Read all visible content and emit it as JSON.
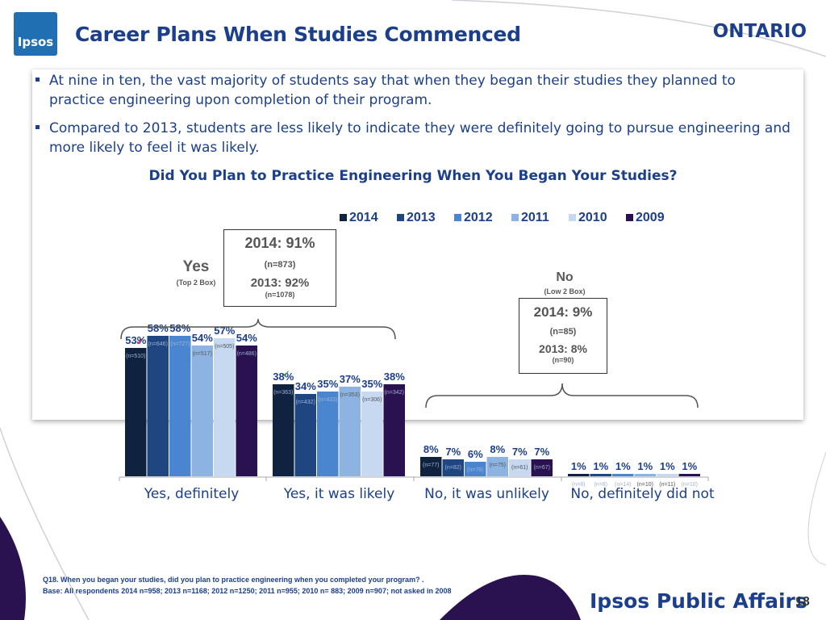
{
  "header": {
    "logo_text": "Ipsos",
    "title": "Career Plans When Studies Commenced",
    "region": "ONTARIO"
  },
  "bullets": [
    "At nine in ten, the vast majority of students say that when they began their studies they planned to practice engineering upon completion of their program.",
    "Compared to 2013, students are less likely to indicate they were definitely going to pursue engineering and more likely to feel it was likely."
  ],
  "chart_data": {
    "type": "bar",
    "title": "Did You Plan to Practice Engineering When You Began Your Studies?",
    "legend_position": "top",
    "ylim": [
      0,
      100
    ],
    "categories": [
      "Yes, definitely",
      "Yes, it was likely",
      "No, it was unlikely",
      "No, definitely did not"
    ],
    "series": [
      {
        "name": "2014",
        "color": "#0f2341",
        "values": [
          53,
          38,
          8,
          1
        ],
        "n": [
          "(n=510)",
          "(n=363)",
          "(n=77)",
          "(n=8)"
        ]
      },
      {
        "name": "2013",
        "color": "#1f4681",
        "values": [
          58,
          34,
          7,
          1
        ],
        "n": [
          "(n=646)",
          "(n=432)",
          "(n=82)",
          "(n=8)"
        ]
      },
      {
        "name": "2012",
        "color": "#4a86cf",
        "values": [
          58,
          35,
          6,
          1
        ],
        "n": [
          "(n=727)",
          "(n=433)",
          "(n=76)",
          "(n=14)"
        ]
      },
      {
        "name": "2011",
        "color": "#8db3e2",
        "values": [
          54,
          37,
          8,
          1
        ],
        "n": [
          "(n=517)",
          "(n=353)",
          "(n=75)",
          "(n=10)"
        ]
      },
      {
        "name": "2010",
        "color": "#c6d9f1",
        "values": [
          57,
          35,
          7,
          1
        ],
        "n": [
          "(n=505)",
          "(n=306)",
          "(n=61)",
          "(n=11)"
        ]
      },
      {
        "name": "2009",
        "color": "#2a1150",
        "values": [
          54,
          38,
          7,
          1
        ],
        "n": [
          "(n=486)",
          "(n=342)",
          "(n=67)",
          "(n=10)"
        ]
      }
    ],
    "annotations": {
      "yes": {
        "label": "Yes",
        "sublabel": "(Top 2 Box)",
        "line1": "2014: 91%",
        "line2": "(n=873)",
        "line3": "2013: 92%",
        "line4": "(n=1078)"
      },
      "no": {
        "label": "No",
        "sublabel": "(Low 2 Box)",
        "line1": "2014: 9%",
        "line2": "(n=85)",
        "line3": "2013: 8%",
        "line4": "(n=90)"
      },
      "significance_marks": [
        "✓",
        "✓"
      ]
    }
  },
  "footer": {
    "note1": "Q18. When you began your studies, did you plan to practice engineering when you completed your program? .",
    "note2": "Base:  All respondents 2014 n=958; 2013 n=1168; 2012 n=1250; 2011 n=955; 2010 n= 883; 2009 n=907; not asked in 2008",
    "brand": "Ipsos Public Affairs",
    "page": "18"
  }
}
